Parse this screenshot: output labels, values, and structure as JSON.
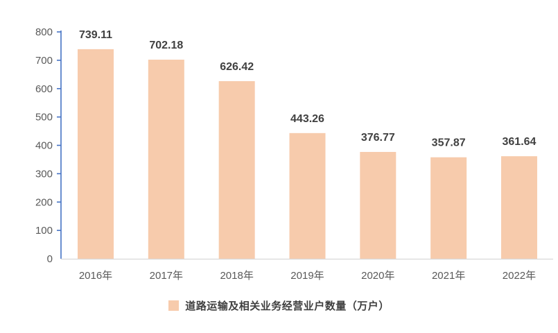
{
  "chart_data": {
    "type": "bar",
    "title": "",
    "xlabel": "",
    "ylabel": "",
    "categories": [
      "2016年",
      "2017年",
      "2018年",
      "2019年",
      "2020年",
      "2021年",
      "2022年"
    ],
    "values": [
      739.11,
      702.18,
      626.42,
      443.26,
      376.77,
      357.87,
      361.64
    ],
    "value_labels": [
      "739.11",
      "702.18",
      "626.42",
      "443.26",
      "376.77",
      "357.87",
      "361.64"
    ],
    "series_name": "道路运输及相关业务经营业户数量（万户）",
    "ylim": [
      0,
      800
    ],
    "ytick_step": 100,
    "yticks": [
      0,
      100,
      200,
      300,
      400,
      500,
      600,
      700,
      800
    ],
    "grid": false,
    "legend_position": "bottom",
    "colors": {
      "bar_fill": "#F7CBAC",
      "y_axis_line": "#4472C4",
      "x_baseline": "#D9D9D9",
      "value_label": "#404040",
      "tick_label": "#595959",
      "category_label": "#595959",
      "legend_text": "#3F3F3F",
      "background": "#FFFFFF"
    }
  }
}
